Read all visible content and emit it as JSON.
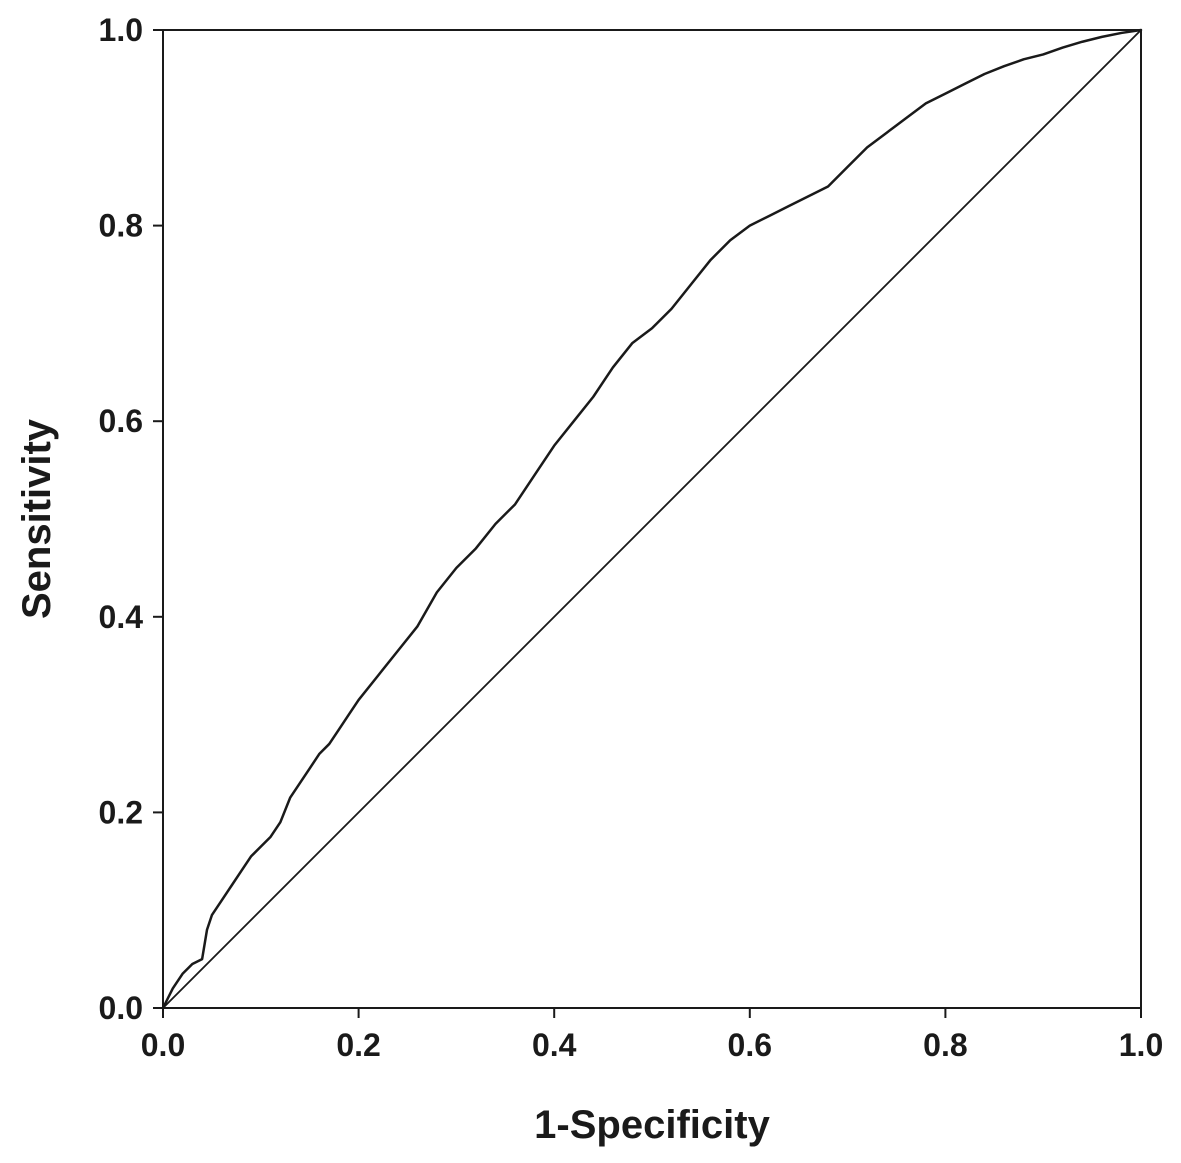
{
  "chart_data": {
    "type": "line",
    "title": "",
    "xlabel": "1-Specificity",
    "ylabel": "Sensitivity",
    "xlim": [
      0.0,
      1.0
    ],
    "ylim": [
      0.0,
      1.0
    ],
    "x_ticks": [
      "0.0",
      "0.2",
      "0.4",
      "0.6",
      "0.8",
      "1.0"
    ],
    "y_ticks": [
      "0.0",
      "0.2",
      "0.4",
      "0.6",
      "0.8",
      "1.0"
    ],
    "grid": false,
    "legend": "none",
    "colors": {
      "line": "#1a1a1a",
      "frame": "#1a1a1a",
      "background": "#ffffff"
    },
    "series": [
      {
        "x": [
          0.0,
          0.01,
          0.02,
          0.03,
          0.04,
          0.045,
          0.05,
          0.06,
          0.07,
          0.08,
          0.09,
          0.1,
          0.11,
          0.12,
          0.13,
          0.14,
          0.15,
          0.16,
          0.17,
          0.18,
          0.19,
          0.2,
          0.22,
          0.24,
          0.26,
          0.28,
          0.3,
          0.32,
          0.34,
          0.36,
          0.38,
          0.4,
          0.42,
          0.44,
          0.46,
          0.48,
          0.5,
          0.52,
          0.54,
          0.56,
          0.58,
          0.6,
          0.62,
          0.64,
          0.66,
          0.68,
          0.7,
          0.72,
          0.74,
          0.76,
          0.78,
          0.8,
          0.82,
          0.84,
          0.86,
          0.88,
          0.9,
          0.92,
          0.94,
          0.96,
          0.98,
          1.0
        ],
        "y": [
          0.0,
          0.02,
          0.035,
          0.045,
          0.05,
          0.08,
          0.095,
          0.11,
          0.125,
          0.14,
          0.155,
          0.165,
          0.175,
          0.19,
          0.215,
          0.23,
          0.245,
          0.26,
          0.27,
          0.285,
          0.3,
          0.315,
          0.34,
          0.365,
          0.39,
          0.425,
          0.45,
          0.47,
          0.495,
          0.515,
          0.545,
          0.575,
          0.6,
          0.625,
          0.655,
          0.68,
          0.695,
          0.715,
          0.74,
          0.765,
          0.785,
          0.8,
          0.81,
          0.82,
          0.83,
          0.84,
          0.86,
          0.88,
          0.895,
          0.91,
          0.925,
          0.935,
          0.945,
          0.955,
          0.963,
          0.97,
          0.975,
          0.982,
          0.988,
          0.993,
          0.997,
          1.0
        ]
      },
      {
        "x": [
          0.0,
          1.0
        ],
        "y": [
          0.0,
          1.0
        ]
      }
    ]
  }
}
